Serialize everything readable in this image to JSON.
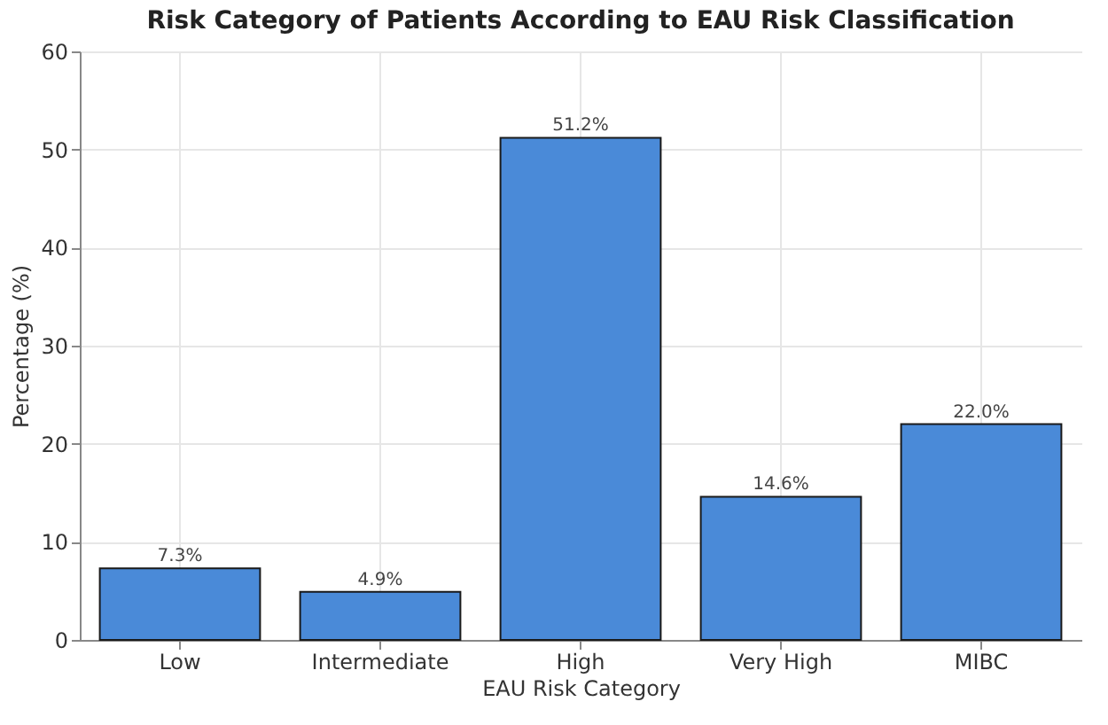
{
  "chart_data": {
    "type": "bar",
    "title": "Risk Category of Patients According to EAU Risk Classification",
    "xlabel": "EAU Risk Category",
    "ylabel": "Percentage (%)",
    "categories": [
      "Low",
      "Intermediate",
      "High",
      "Very High",
      "MIBC"
    ],
    "values": [
      7.3,
      4.9,
      51.2,
      14.6,
      22.0
    ],
    "value_labels": [
      "7.3%",
      "4.9%",
      "51.2%",
      "14.6%",
      "22.0%"
    ],
    "color": "#4a8ad8",
    "ylim": [
      0,
      60
    ],
    "yticks": [
      0,
      10,
      20,
      30,
      40,
      50,
      60
    ],
    "grid": true
  }
}
